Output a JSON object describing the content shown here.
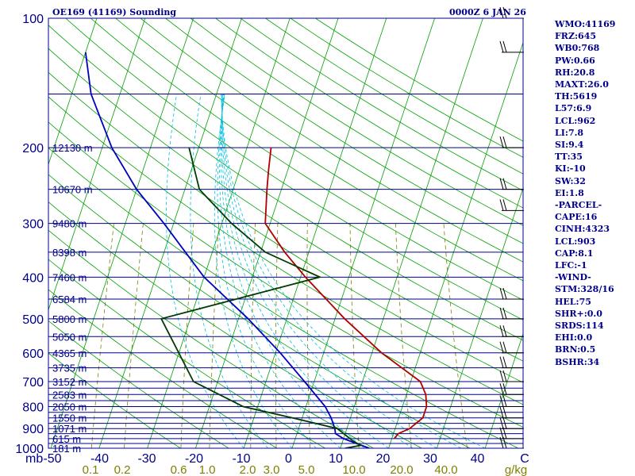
{
  "header": {
    "station": "OE169 (41169) Sounding",
    "valid": "0000Z  6 JAN 26"
  },
  "indices": [
    "WMO:41169",
    "FRZ:645",
    "WB0:768",
    "PW:0.66",
    "RH:20.8",
    "MAXT:26.0",
    "TH:5619",
    "L57:6.9",
    "LCL:962",
    "LI:7.8",
    "SI:9.4",
    "TT:35",
    "KI:-10",
    "SW:32",
    "EI:1.8",
    "-PARCEL-",
    "CAPE:16",
    "CINH:4323",
    "LCL:903",
    "CAP:8.1",
    "LFC:-1",
    "-WIND-",
    "STM:328/16",
    "HEL:75",
    "SHR+:0.0",
    "SRDS:114",
    "EHI:0.0",
    "BRN:0.5",
    "BSHR:34"
  ],
  "colors": {
    "background": "#ffffff",
    "isobar": "#00008b",
    "dry_adiabat": "#00a000",
    "moist_adiabat": "#00a000",
    "mixing_ratio": "#808000",
    "temperature_profile": "#b00000",
    "dewpoint_profile": "#003a00",
    "wetbulb_profile": "#0000c0",
    "label_text": "#00008b",
    "mixing_ratio_text": "#808000"
  },
  "chart_data": {
    "type": "line",
    "chart_kind": "Skew-T log-P sounding",
    "pressure_axis": {
      "label": "mb",
      "scale": "log",
      "range": [
        1000,
        100
      ],
      "tick_labels": [
        "1000",
        "900",
        "800",
        "700",
        "600",
        "500",
        "400",
        "300",
        "200",
        "100"
      ]
    },
    "isobars_mb": [
      1000,
      975,
      950,
      925,
      900,
      875,
      850,
      825,
      800,
      775,
      750,
      725,
      700,
      650,
      600,
      550,
      500,
      450,
      400,
      350,
      300,
      250,
      200,
      150,
      100
    ],
    "temperature_axis": {
      "unit": "C",
      "tick_labels": [
        "-50",
        "-40",
        "-30",
        "-20",
        "-10",
        "0",
        "10",
        "20",
        "30",
        "40",
        "C"
      ]
    },
    "mixing_ratio_axis": {
      "unit": "g/kg",
      "tick_labels": [
        "0.1",
        "0.2",
        "0.6",
        "1.0",
        "2.0",
        "3.0",
        "5.0",
        "10.0",
        "20.0",
        "40.0",
        "g/kg"
      ]
    },
    "height_labels": [
      {
        "p": 200,
        "text": "12130 m"
      },
      {
        "p": 250,
        "text": "10670 m"
      },
      {
        "p": 300,
        "text": "9480 m"
      },
      {
        "p": 350,
        "text": "8398 m"
      },
      {
        "p": 400,
        "text": "7460 m"
      },
      {
        "p": 450,
        "text": "6584 m"
      },
      {
        "p": 500,
        "text": "5800 m"
      },
      {
        "p": 550,
        "text": "5050 m"
      },
      {
        "p": 600,
        "text": "4365 m"
      },
      {
        "p": 650,
        "text": "3735 m"
      },
      {
        "p": 700,
        "text": "3152 m"
      },
      {
        "p": 750,
        "text": "2583 m"
      },
      {
        "p": 800,
        "text": "2050 m"
      },
      {
        "p": 850,
        "text": "1550 m"
      },
      {
        "p": 900,
        "text": "1071 m"
      },
      {
        "p": 950,
        "text": "615 m"
      },
      {
        "p": 1000,
        "text": "181 m"
      }
    ],
    "series": [
      {
        "key": "temperature",
        "points": [
          [
            950,
            20.5
          ],
          [
            925,
            21
          ],
          [
            900,
            23
          ],
          [
            850,
            25
          ],
          [
            800,
            25
          ],
          [
            750,
            24
          ],
          [
            700,
            22
          ],
          [
            600,
            12
          ],
          [
            500,
            2
          ],
          [
            400,
            -9
          ],
          [
            350,
            -15
          ],
          [
            300,
            -21
          ],
          [
            250,
            -23
          ],
          [
            225,
            -24
          ],
          [
            200,
            -25
          ]
        ]
      },
      {
        "key": "wetbulb",
        "points": [
          [
            1000,
            16
          ],
          [
            975,
            13
          ],
          [
            950,
            10
          ],
          [
            925,
            8
          ],
          [
            900,
            7.5
          ],
          [
            850,
            6
          ],
          [
            800,
            4
          ],
          [
            700,
            -2
          ],
          [
            600,
            -9
          ],
          [
            500,
            -18
          ],
          [
            400,
            -30
          ],
          [
            300,
            -42
          ],
          [
            250,
            -50
          ],
          [
            200,
            -58
          ],
          [
            150,
            -66
          ],
          [
            120,
            -70
          ]
        ]
      },
      {
        "key": "dewpoint",
        "points": [
          [
            1000,
            11
          ],
          [
            985,
            14
          ],
          [
            960,
            12
          ],
          [
            900,
            8
          ],
          [
            850,
            -2
          ],
          [
            800,
            -13
          ],
          [
            700,
            -25
          ],
          [
            500,
            -36
          ],
          [
            400,
            -6
          ],
          [
            350,
            -19
          ],
          [
            300,
            -28
          ],
          [
            250,
            -37
          ],
          [
            200,
            -42
          ]
        ]
      }
    ],
    "wind_barbs_mb": [
      100,
      120,
      200,
      250,
      280,
      450,
      500,
      550,
      600,
      650,
      700,
      750,
      800,
      850,
      900,
      950,
      1000
    ]
  }
}
